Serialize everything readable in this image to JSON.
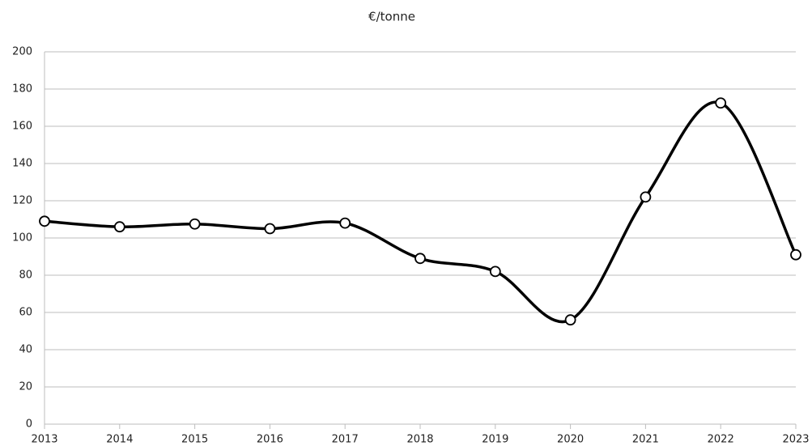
{
  "chart_data": {
    "type": "line",
    "title": "€/tonne",
    "x": [
      2013,
      2014,
      2015,
      2016,
      2017,
      2018,
      2019,
      2020,
      2021,
      2022,
      2023
    ],
    "series": [
      {
        "name": "€/tonne",
        "color": "#000000",
        "values": [
          109,
          106,
          107.5,
          105,
          108,
          89,
          82,
          56,
          122,
          172.5,
          91
        ]
      }
    ],
    "xlim": [
      2013,
      2023
    ],
    "xticks": [
      2013,
      2014,
      2015,
      2016,
      2017,
      2018,
      2019,
      2020,
      2021,
      2022,
      2023
    ],
    "ylim": [
      0,
      200
    ],
    "yticks": [
      0,
      20,
      40,
      60,
      80,
      100,
      120,
      140,
      160,
      180,
      200
    ],
    "grid": true,
    "smooth": true
  }
}
